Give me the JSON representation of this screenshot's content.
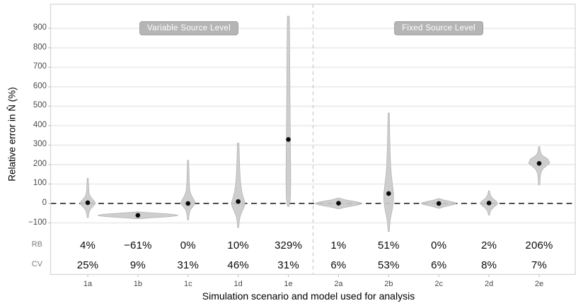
{
  "figure": {
    "panel_labels": {
      "left": "Variable Source Level",
      "right": "Fixed Source Level"
    },
    "row_labels": {
      "rb": "RB",
      "cv": "CV"
    },
    "axes": {
      "y_title": "Relative error in N̂ (%)",
      "x_title": "Simulation scenario and model used for analysis",
      "y_tick_labels": [
        "900",
        "800",
        "700",
        "600",
        "500",
        "400",
        "300",
        "200",
        "100",
        "0",
        "−100"
      ],
      "y_tick_values": [
        900,
        800,
        700,
        600,
        500,
        400,
        300,
        200,
        100,
        0,
        -100
      ]
    },
    "colors": {
      "violin_fill": "#cacaca",
      "violin_stroke": "#b0b0b0",
      "gridline": "#ededed",
      "panel_border": "#d6d6d6",
      "zero_line": "#141414",
      "separator": "#cbcbcb",
      "dot": "#0a0a0a",
      "label_box": "#b5b5b5",
      "label_text": "#ffffff"
    }
  },
  "chart_data": {
    "type": "violin",
    "title": "",
    "xlabel": "Simulation scenario and model used for analysis",
    "ylabel": "Relative error in N̂ (%)",
    "ylim": [
      -100,
      950
    ],
    "gridline_step": 100,
    "zero_reference_line": true,
    "panels": [
      {
        "name": "Variable Source Level",
        "categories": [
          "1a",
          "1b",
          "1c",
          "1d",
          "1e"
        ]
      },
      {
        "name": "Fixed Source Level",
        "categories": [
          "2a",
          "2b",
          "2c",
          "2d",
          "2e"
        ]
      }
    ],
    "categories": [
      "1a",
      "1b",
      "1c",
      "1d",
      "1e",
      "2a",
      "2b",
      "2c",
      "2d",
      "2e"
    ],
    "violins": [
      {
        "label": "1a",
        "panel": "Variable Source Level",
        "rb": "4%",
        "cv": "25%",
        "dot": 4,
        "range": [
          -73,
          130
        ],
        "profile": [
          [
            130,
            0.8
          ],
          [
            95,
            1.2
          ],
          [
            70,
            1.6
          ],
          [
            50,
            2.2
          ],
          [
            38,
            3.5
          ],
          [
            25,
            6
          ],
          [
            12,
            9.5
          ],
          [
            2,
            11
          ],
          [
            -8,
            9.5
          ],
          [
            -20,
            6
          ],
          [
            -32,
            3.5
          ],
          [
            -45,
            2
          ],
          [
            -60,
            1.2
          ],
          [
            -73,
            0.8
          ]
        ]
      },
      {
        "label": "1b",
        "panel": "Variable Source Level",
        "rb": "−61%",
        "cv": "9%",
        "dot": -61,
        "range": [
          -79,
          -43
        ],
        "profile": [
          [
            -43,
            0.8
          ],
          [
            -48,
            18
          ],
          [
            -53,
            40
          ],
          [
            -57,
            52
          ],
          [
            -61,
            57
          ],
          [
            -65,
            52
          ],
          [
            -69,
            40
          ],
          [
            -74,
            18
          ],
          [
            -79,
            0.8
          ]
        ]
      },
      {
        "label": "1c",
        "panel": "Variable Source Level",
        "rb": "0%",
        "cv": "31%",
        "dot": 0,
        "range": [
          -85,
          222
        ],
        "profile": [
          [
            222,
            0.9
          ],
          [
            180,
            1.2
          ],
          [
            140,
            1.5
          ],
          [
            105,
            1.8
          ],
          [
            80,
            2.2
          ],
          [
            60,
            3
          ],
          [
            45,
            4.5
          ],
          [
            30,
            6.5
          ],
          [
            15,
            9
          ],
          [
            3,
            10
          ],
          [
            -8,
            8.5
          ],
          [
            -20,
            6
          ],
          [
            -32,
            3.5
          ],
          [
            -48,
            2
          ],
          [
            -65,
            1.2
          ],
          [
            -85,
            0.8
          ]
        ]
      },
      {
        "label": "1d",
        "panel": "Variable Source Level",
        "rb": "10%",
        "cv": "46%",
        "dot": 10,
        "range": [
          -124,
          310
        ],
        "profile": [
          [
            310,
            1.1
          ],
          [
            260,
            1.5
          ],
          [
            210,
            1.9
          ],
          [
            165,
            2.4
          ],
          [
            125,
            3
          ],
          [
            90,
            4
          ],
          [
            65,
            5
          ],
          [
            45,
            6.2
          ],
          [
            28,
            7.6
          ],
          [
            12,
            9
          ],
          [
            0,
            9.8
          ],
          [
            -14,
            8.8
          ],
          [
            -30,
            7
          ],
          [
            -48,
            4.8
          ],
          [
            -65,
            3
          ],
          [
            -85,
            1.8
          ],
          [
            -105,
            1.2
          ],
          [
            -124,
            0.8
          ]
        ]
      },
      {
        "label": "1e",
        "panel": "Variable Source Level",
        "rb": "329%",
        "cv": "31%",
        "dot": 329,
        "range": [
          -15,
          963
        ],
        "profile": [
          [
            963,
            1.4
          ],
          [
            880,
            1.7
          ],
          [
            780,
            1.9
          ],
          [
            680,
            2.1
          ],
          [
            580,
            2.3
          ],
          [
            480,
            2.5
          ],
          [
            390,
            2.7
          ],
          [
            330,
            2.9
          ],
          [
            260,
            3.1
          ],
          [
            190,
            3.3
          ],
          [
            120,
            3.4
          ],
          [
            60,
            3.2
          ],
          [
            20,
            2.8
          ],
          [
            -15,
            1.2
          ]
        ]
      },
      {
        "label": "2a",
        "panel": "Fixed Source Level",
        "rb": "1%",
        "cv": "6%",
        "dot": 1,
        "range": [
          -28,
          28
        ],
        "profile": [
          [
            28,
            0.8
          ],
          [
            19,
            9
          ],
          [
            11,
            22
          ],
          [
            4,
            31
          ],
          [
            -1,
            33
          ],
          [
            -7,
            29
          ],
          [
            -14,
            18
          ],
          [
            -21,
            8
          ],
          [
            -28,
            0.8
          ]
        ]
      },
      {
        "label": "2b",
        "panel": "Fixed Source Level",
        "rb": "51%",
        "cv": "53%",
        "dot": 51,
        "range": [
          -145,
          465
        ],
        "profile": [
          [
            465,
            0.9
          ],
          [
            410,
            1.2
          ],
          [
            350,
            1.5
          ],
          [
            290,
            1.9
          ],
          [
            235,
            2.4
          ],
          [
            185,
            3
          ],
          [
            145,
            3.9
          ],
          [
            110,
            5
          ],
          [
            80,
            6
          ],
          [
            55,
            6.8
          ],
          [
            30,
            7
          ],
          [
            8,
            6.6
          ],
          [
            -12,
            6
          ],
          [
            -35,
            5
          ],
          [
            -58,
            3.6
          ],
          [
            -82,
            2.4
          ],
          [
            -110,
            1.5
          ],
          [
            -145,
            0.8
          ]
        ]
      },
      {
        "label": "2c",
        "panel": "Fixed Source Level",
        "rb": "0%",
        "cv": "6%",
        "dot": 0,
        "range": [
          -25,
          25
        ],
        "profile": [
          [
            25,
            0.8
          ],
          [
            17,
            8
          ],
          [
            9,
            18
          ],
          [
            2,
            25
          ],
          [
            -4,
            23
          ],
          [
            -11,
            15
          ],
          [
            -18,
            7
          ],
          [
            -25,
            0.8
          ]
        ]
      },
      {
        "label": "2d",
        "panel": "Fixed Source Level",
        "rb": "2%",
        "cv": "8%",
        "dot": 2,
        "range": [
          -60,
          65
        ],
        "profile": [
          [
            65,
            0.8
          ],
          [
            48,
            1.6
          ],
          [
            34,
            3.4
          ],
          [
            22,
            6.5
          ],
          [
            11,
            10.5
          ],
          [
            1,
            12.5
          ],
          [
            -9,
            10.5
          ],
          [
            -20,
            6.5
          ],
          [
            -32,
            3.4
          ],
          [
            -45,
            1.6
          ],
          [
            -60,
            0.8
          ]
        ]
      },
      {
        "label": "2e",
        "panel": "Fixed Source Level",
        "rb": "206%",
        "cv": "7%",
        "dot": 206,
        "range": [
          95,
          292
        ],
        "profile": [
          [
            292,
            1.1
          ],
          [
            272,
            1.6
          ],
          [
            256,
            2.6
          ],
          [
            243,
            6
          ],
          [
            228,
            12.5
          ],
          [
            207,
            15
          ],
          [
            192,
            10
          ],
          [
            178,
            5.5
          ],
          [
            162,
            3
          ],
          [
            145,
            1.8
          ],
          [
            120,
            1.3
          ],
          [
            95,
            0.9
          ]
        ]
      }
    ]
  }
}
